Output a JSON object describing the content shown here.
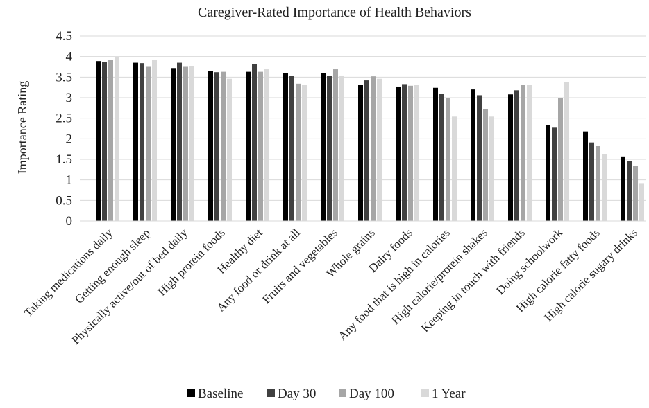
{
  "chart_data": {
    "type": "bar",
    "title": "Caregiver-Rated Importance of Health Behaviors",
    "xlabel": "",
    "ylabel": "Importance Rating",
    "ylim": [
      0,
      4.5
    ],
    "yticks": [
      "0",
      "0.5",
      "1",
      "1.5",
      "2",
      "2.5",
      "3",
      "3.5",
      "4",
      "4.5"
    ],
    "legend_position": "bottom",
    "categories": [
      "Taking medications daily",
      "Getting enough sleep",
      "Physically active/out of bed daily",
      "High protein foods",
      "Healthy diet",
      "Any food or drink at all",
      "Fruits and vegetables",
      "Whole grains",
      "Dairy foods",
      "Any food that is high in calories",
      "High calorie/protein shakes",
      "Keeping in touch with friends",
      "Doing schoolwork",
      "High calorie fatty foods",
      "High calorie sugary drinks"
    ],
    "series": [
      {
        "name": "Baseline",
        "color": "#000000",
        "values": [
          3.89,
          3.85,
          3.72,
          3.65,
          3.63,
          3.59,
          3.59,
          3.31,
          3.27,
          3.24,
          3.2,
          3.08,
          2.33,
          2.18,
          1.57
        ]
      },
      {
        "name": "Day 30",
        "color": "#404040",
        "values": [
          3.87,
          3.84,
          3.85,
          3.62,
          3.82,
          3.53,
          3.53,
          3.42,
          3.33,
          3.09,
          3.06,
          3.18,
          2.27,
          1.91,
          1.45
        ]
      },
      {
        "name": "Day 100",
        "color": "#a6a6a6",
        "values": [
          3.91,
          3.75,
          3.75,
          3.63,
          3.63,
          3.34,
          3.69,
          3.52,
          3.29,
          3.0,
          2.72,
          3.31,
          3.0,
          1.82,
          1.34
        ]
      },
      {
        "name": "1 Year",
        "color": "#d9d9d9",
        "values": [
          3.99,
          3.92,
          3.77,
          3.46,
          3.69,
          3.31,
          3.54,
          3.46,
          3.31,
          2.54,
          2.54,
          3.31,
          3.38,
          1.62,
          0.92
        ]
      }
    ]
  }
}
